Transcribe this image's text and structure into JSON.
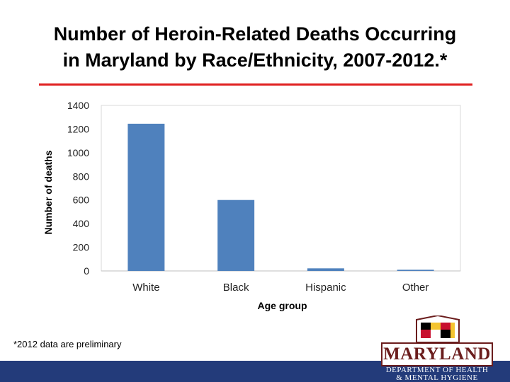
{
  "title_line1": "Number of Heroin-Related Deaths Occurring",
  "title_line2": "in Maryland by Race/Ethnicity, 2007-2012.*",
  "footnote": "*2012 data are preliminary",
  "logo": {
    "wordmark": "MARYLAND",
    "dept_line1": "DEPARTMENT OF HEALTH",
    "dept_line2": "& MENTAL HYGIENE"
  },
  "colors": {
    "bar": "#4f81bd",
    "title_rule": "#e02020",
    "bottom_bar": "#233b7a",
    "logo_maroon": "#6b1d1d"
  },
  "chart_data": {
    "type": "bar",
    "categories": [
      "White",
      "Black",
      "Hispanic",
      "Other"
    ],
    "values": [
      1245,
      600,
      22,
      10
    ],
    "xlabel": "Age group",
    "ylabel": "Number of deaths",
    "ylim": [
      0,
      1400
    ],
    "yticks": [
      0,
      200,
      400,
      600,
      800,
      1000,
      1200,
      1400
    ],
    "grid": false,
    "legend": "none"
  }
}
